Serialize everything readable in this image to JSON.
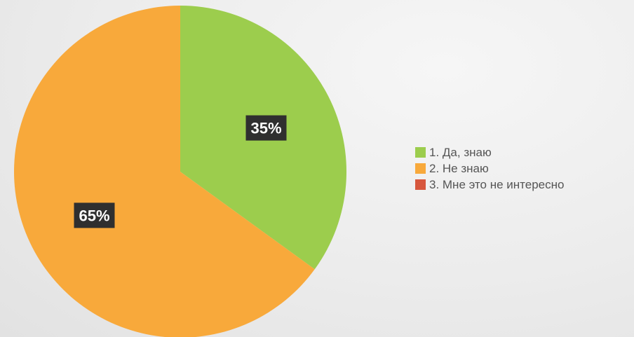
{
  "chart_data": {
    "type": "pie",
    "categories": [
      "1. Да, знаю",
      "2. Не знаю",
      "3. Мне это не интересно"
    ],
    "values": [
      35,
      65,
      0
    ],
    "data_labels": [
      "35%",
      "65%",
      ""
    ],
    "colors": [
      "#9ccd4d",
      "#f8a93b",
      "#d7573d"
    ],
    "legend": "right"
  }
}
